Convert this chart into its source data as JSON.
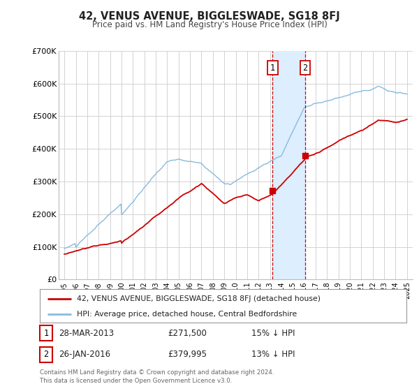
{
  "title": "42, VENUS AVENUE, BIGGLESWADE, SG18 8FJ",
  "subtitle": "Price paid vs. HM Land Registry's House Price Index (HPI)",
  "legend_line1": "42, VENUS AVENUE, BIGGLESWADE, SG18 8FJ (detached house)",
  "legend_line2": "HPI: Average price, detached house, Central Bedfordshire",
  "annotation1_label": "1",
  "annotation1_date": "28-MAR-2013",
  "annotation1_price": "£271,500",
  "annotation1_hpi": "15% ↓ HPI",
  "annotation2_label": "2",
  "annotation2_date": "26-JAN-2016",
  "annotation2_price": "£379,995",
  "annotation2_hpi": "13% ↓ HPI",
  "footer": "Contains HM Land Registry data © Crown copyright and database right 2024.\nThis data is licensed under the Open Government Licence v3.0.",
  "color_red": "#cc0000",
  "color_blue": "#88bbdd",
  "color_shade": "#ddeeff",
  "ylim": [
    0,
    700000
  ],
  "ylabel_ticks": [
    0,
    100000,
    200000,
    300000,
    400000,
    500000,
    600000,
    700000
  ],
  "ylabel_labels": [
    "£0",
    "£100K",
    "£200K",
    "£300K",
    "£400K",
    "£500K",
    "£600K",
    "£700K"
  ],
  "event1_date_num": 2013.24,
  "event2_date_num": 2016.07,
  "event1_price": 271500,
  "event2_price": 379995
}
